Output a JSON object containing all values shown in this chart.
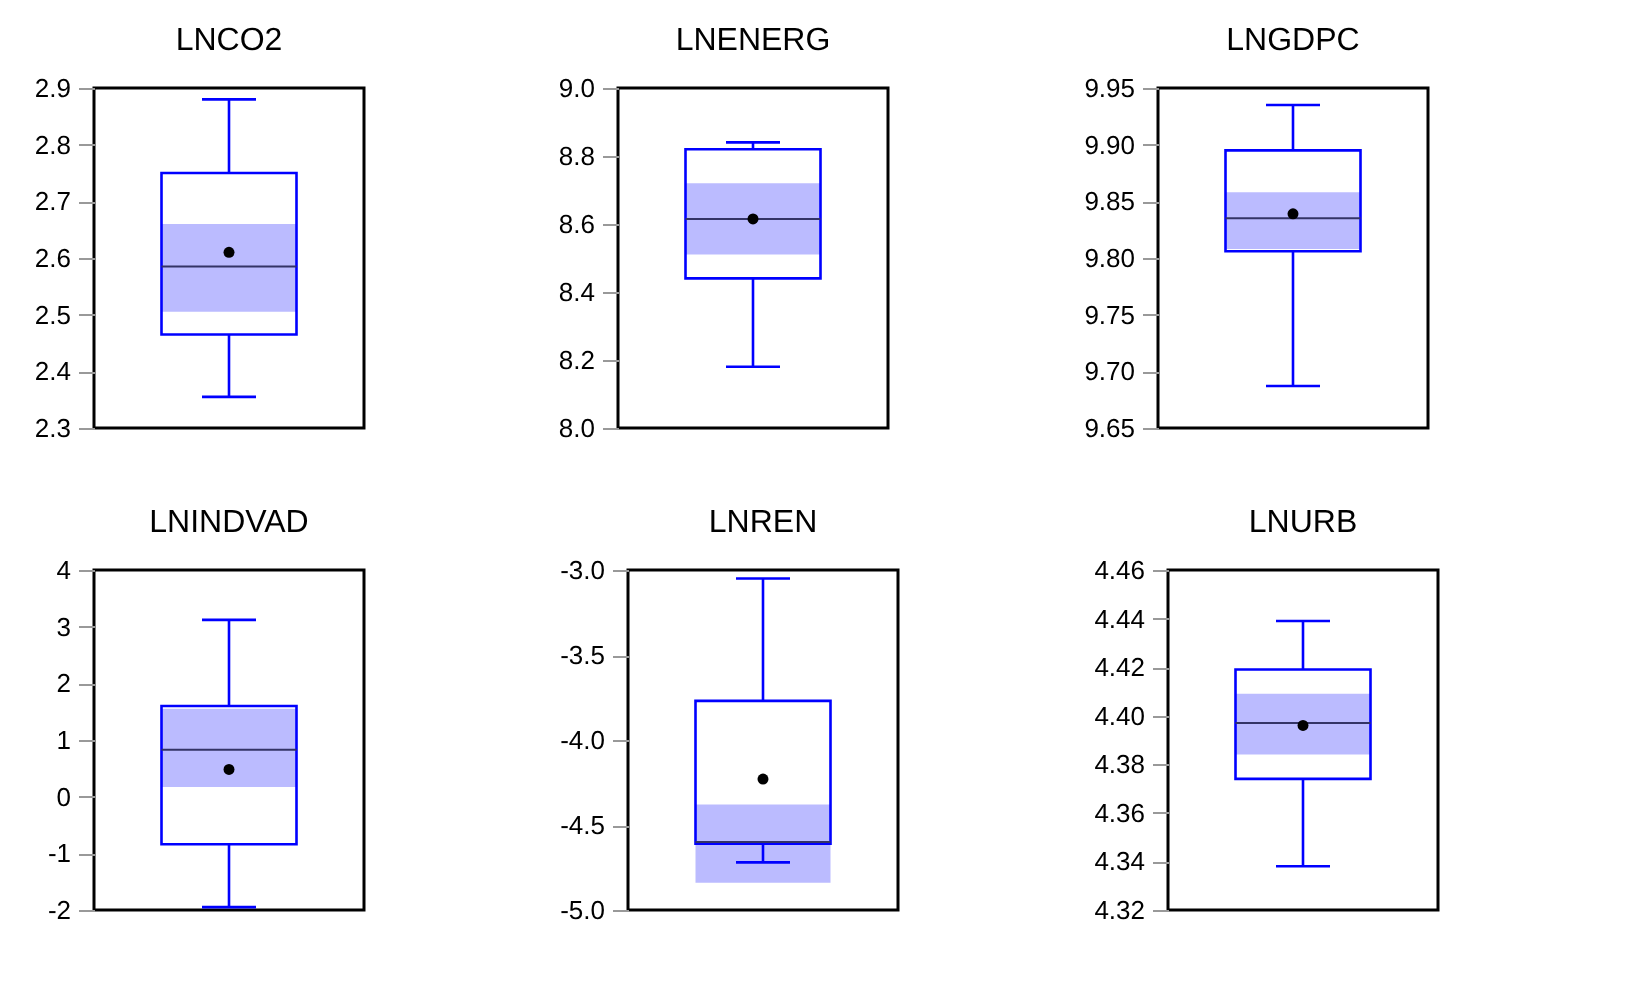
{
  "chart_data": [
    {
      "type": "box",
      "title": "LNCO2",
      "categories": [
        null
      ],
      "ylim": [
        2.3,
        2.9
      ],
      "yticks": [
        2.3,
        2.4,
        2.5,
        2.6,
        2.7,
        2.8,
        2.9
      ],
      "series": [
        {
          "color": "#0000ff",
          "boxes": [
            {
              "low": 2.355,
              "q1": 2.465,
              "median": 2.585,
              "q3": 2.75,
              "high": 2.88,
              "mean": 2.61
            }
          ]
        }
      ],
      "bands": [
        {
          "axis": "y",
          "from": 2.505,
          "to": 2.66,
          "color": "#bbbbff"
        }
      ]
    },
    {
      "type": "box",
      "title": "LNENERG",
      "categories": [
        null
      ],
      "ylim": [
        8.0,
        9.0
      ],
      "yticks": [
        {
          "value": 8,
          "label": "8.0"
        },
        8.2,
        8.4,
        8.6,
        8.8,
        {
          "value": 9,
          "label": "9.0"
        }
      ],
      "series": [
        {
          "color": "#0000ff",
          "boxes": [
            {
              "low": 8.18,
              "q1": 8.44,
              "median": 8.615,
              "q3": 8.82,
              "high": 8.84,
              "mean": 8.615
            }
          ]
        }
      ],
      "bands": [
        {
          "axis": "y",
          "from": 8.51,
          "to": 8.72,
          "color": "#bbbbff"
        }
      ]
    },
    {
      "type": "box",
      "title": "LNGDPC",
      "categories": [
        null
      ],
      "ylim": [
        9.65,
        9.95
      ],
      "yticks": [
        9.65,
        {
          "value": 9.7,
          "label": "9.70"
        },
        9.75,
        {
          "value": 9.8,
          "label": "9.80"
        },
        9.85,
        {
          "value": 9.9,
          "label": "9.90"
        },
        9.95
      ],
      "series": [
        {
          "color": "#0000ff",
          "boxes": [
            {
              "low": 9.687,
              "q1": 9.806,
              "median": 9.835,
              "q3": 9.895,
              "high": 9.935,
              "mean": 9.839
            }
          ]
        }
      ],
      "bands": [
        {
          "axis": "y",
          "from": 9.808,
          "to": 9.858,
          "color": "#bbbbff"
        }
      ]
    },
    {
      "type": "box",
      "title": "LNINDVAD",
      "categories": [
        null
      ],
      "ylim": [
        -2,
        4
      ],
      "yticks": [
        -2,
        -1,
        0,
        1,
        2,
        3,
        4
      ],
      "series": [
        {
          "color": "#0000ff",
          "boxes": [
            {
              "low": -1.95,
              "q1": -0.84,
              "median": 0.83,
              "q3": 1.6,
              "high": 3.12,
              "mean": 0.48
            }
          ]
        }
      ],
      "bands": [
        {
          "axis": "y",
          "from": 0.17,
          "to": 1.55,
          "color": "#bbbbff"
        }
      ]
    },
    {
      "type": "box",
      "title": "LNREN",
      "categories": [
        null
      ],
      "ylim": [
        -5,
        -3
      ],
      "yticks": [
        {
          "value": -5,
          "label": "-5.0"
        },
        -4.5,
        {
          "value": -4,
          "label": "-4.0"
        },
        -3.5,
        {
          "value": -3,
          "label": "-3.0"
        }
      ],
      "series": [
        {
          "color": "#0000ff",
          "boxes": [
            {
              "low": -4.72,
              "q1": -4.61,
              "median": -4.6,
              "q3": -3.77,
              "high": -3.05,
              "mean": -4.23
            }
          ]
        }
      ],
      "bands": [
        {
          "axis": "y",
          "from": -4.84,
          "to": -4.38,
          "color": "#bbbbff"
        }
      ]
    },
    {
      "type": "box",
      "title": "LNURB",
      "categories": [
        null
      ],
      "ylim": [
        4.32,
        4.46
      ],
      "yticks": [
        4.32,
        4.34,
        4.36,
        4.38,
        {
          "value": 4.4,
          "label": "4.40"
        },
        4.42,
        4.44,
        4.46
      ],
      "series": [
        {
          "color": "#0000ff",
          "boxes": [
            {
              "low": 4.338,
              "q1": 4.374,
              "median": 4.397,
              "q3": 4.419,
              "high": 4.439,
              "mean": 4.396
            }
          ]
        }
      ],
      "bands": [
        {
          "axis": "y",
          "from": 4.384,
          "to": 4.409,
          "color": "#bbbbff"
        }
      ]
    }
  ]
}
